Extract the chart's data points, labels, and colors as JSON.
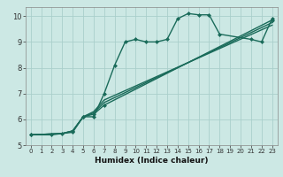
{
  "xlabel": "Humidex (Indice chaleur)",
  "bg_color": "#cce8e4",
  "grid_color": "#aacfcb",
  "line_color": "#1a6b5a",
  "xlim": [
    -0.5,
    23.5
  ],
  "ylim": [
    5.0,
    10.35
  ],
  "xticks": [
    0,
    1,
    2,
    3,
    4,
    5,
    6,
    7,
    8,
    9,
    10,
    11,
    12,
    13,
    14,
    15,
    16,
    17,
    18,
    19,
    20,
    21,
    22,
    23
  ],
  "yticks": [
    5,
    6,
    7,
    8,
    9,
    10
  ],
  "series": [
    {
      "x": [
        0,
        2,
        4,
        5,
        6,
        7,
        8,
        9,
        10,
        11,
        12,
        13,
        14,
        15,
        16,
        17,
        18,
        21,
        22,
        23
      ],
      "y": [
        5.4,
        5.4,
        5.5,
        6.1,
        6.1,
        7.0,
        8.1,
        9.0,
        9.1,
        9.0,
        9.0,
        9.1,
        9.9,
        10.1,
        10.05,
        10.05,
        9.3,
        9.1,
        9.0,
        9.9
      ],
      "marker": "D",
      "markersize": 2.0,
      "linewidth": 1.0
    },
    {
      "x": [
        0,
        3,
        4,
        5,
        6,
        7,
        23
      ],
      "y": [
        5.4,
        5.45,
        5.55,
        6.1,
        6.2,
        6.55,
        9.85
      ],
      "marker": "D",
      "markersize": 2.0,
      "linewidth": 1.0
    },
    {
      "x": [
        0,
        3,
        4,
        5,
        6,
        7,
        23
      ],
      "y": [
        5.4,
        5.45,
        5.55,
        6.1,
        6.25,
        6.65,
        9.75
      ],
      "marker": null,
      "linewidth": 1.0
    },
    {
      "x": [
        0,
        3,
        4,
        5,
        6,
        7,
        23
      ],
      "y": [
        5.4,
        5.45,
        5.55,
        6.1,
        6.3,
        6.75,
        9.65
      ],
      "marker": null,
      "linewidth": 1.0
    }
  ]
}
